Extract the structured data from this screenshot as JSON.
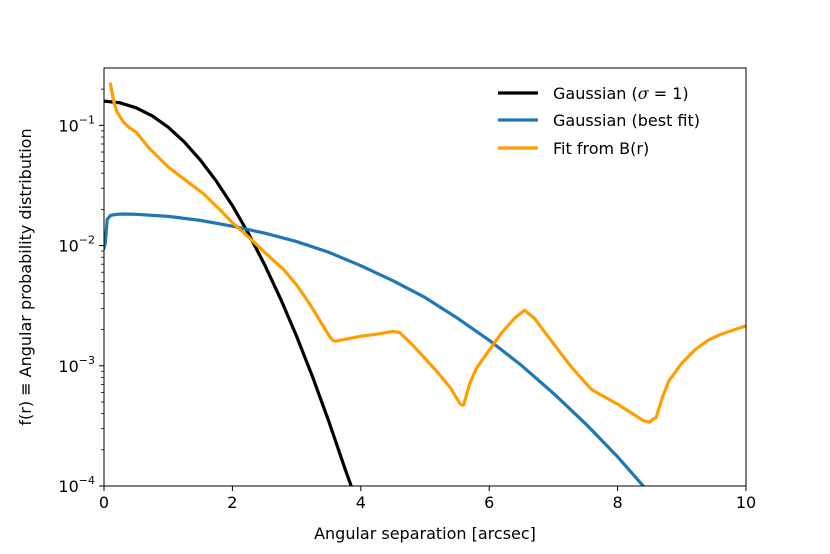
{
  "chart_data": {
    "type": "line",
    "title": "",
    "xlabel": "Angular separation [arcsec]",
    "ylabel": "f(r) ≡ Angular probability distribution",
    "xscale": "linear",
    "yscale": "log",
    "xlim": [
      0,
      10
    ],
    "ylim": [
      0.0001,
      0.3
    ],
    "x_ticks": [
      0,
      2,
      4,
      6,
      8,
      10
    ],
    "x_tick_labels": [
      "0",
      "2",
      "4",
      "6",
      "8",
      "10"
    ],
    "y_ticks": [
      0.0001,
      0.001,
      0.01,
      0.1
    ],
    "y_tick_labels": [
      {
        "base": "10",
        "exp": "−4"
      },
      {
        "base": "10",
        "exp": "−3"
      },
      {
        "base": "10",
        "exp": "−2"
      },
      {
        "base": "10",
        "exp": "−1"
      }
    ],
    "grid": false,
    "legend_position": "top-right",
    "series": [
      {
        "name": "Gaussian (σ = 1)",
        "legend_label": "Gaussian (",
        "legend_sigma": "σ",
        "legend_rest": " = 1)",
        "color": "#000000",
        "x": [
          0,
          0.25,
          0.5,
          0.75,
          1.0,
          1.25,
          1.5,
          1.75,
          2.0,
          2.25,
          2.5,
          2.75,
          3.0,
          3.25,
          3.5,
          3.75,
          3.85
        ],
        "y": [
          0.159,
          0.154,
          0.14,
          0.12,
          0.0965,
          0.0728,
          0.0515,
          0.0343,
          0.0215,
          0.0126,
          0.00696,
          0.00361,
          0.00176,
          0.000806,
          0.000347,
          0.000141,
          0.0001
        ]
      },
      {
        "name": "Gaussian (best fit)",
        "legend_label": "Gaussian (best fit)",
        "color": "#1f77b4",
        "x": [
          0,
          0.02,
          0.05,
          0.1,
          0.2,
          0.3,
          0.5,
          1.0,
          1.5,
          2.0,
          2.5,
          3.0,
          3.5,
          4.0,
          4.5,
          5.0,
          5.5,
          6.0,
          6.5,
          7.0,
          7.5,
          8.0,
          8.4
        ],
        "y": [
          0.0095,
          0.0105,
          0.0165,
          0.0178,
          0.0182,
          0.0183,
          0.0182,
          0.0175,
          0.0162,
          0.0145,
          0.0127,
          0.0108,
          0.0088,
          0.0068,
          0.0051,
          0.0037,
          0.0025,
          0.00163,
          0.00101,
          0.00059,
          0.00033,
          0.000175,
          0.0001
        ]
      },
      {
        "name": "Fit from B(r)",
        "legend_label": "Fit from B(r)",
        "color": "#ff9e00",
        "x": [
          0.1,
          0.15,
          0.2,
          0.3,
          0.4,
          0.5,
          0.7,
          1.0,
          1.3,
          1.55,
          1.8,
          2.0,
          2.2,
          2.5,
          2.8,
          3.0,
          3.2,
          3.4,
          3.5,
          3.55,
          3.6,
          3.8,
          4.0,
          4.3,
          4.5,
          4.6,
          4.8,
          5.0,
          5.2,
          5.4,
          5.5,
          5.55,
          5.6,
          5.7,
          5.8,
          6.0,
          6.2,
          6.4,
          6.55,
          6.7,
          6.9,
          7.1,
          7.3,
          7.5,
          7.6,
          7.8,
          8.0,
          8.2,
          8.4,
          8.5,
          8.55,
          8.6,
          8.7,
          8.8,
          9.0,
          9.2,
          9.4,
          9.6,
          9.8,
          10.0
        ],
        "y": [
          0.22,
          0.16,
          0.13,
          0.107,
          0.095,
          0.088,
          0.065,
          0.045,
          0.034,
          0.027,
          0.02,
          0.0155,
          0.0125,
          0.0088,
          0.0063,
          0.0047,
          0.0033,
          0.0022,
          0.0018,
          0.00165,
          0.0016,
          0.00168,
          0.00176,
          0.00185,
          0.00193,
          0.0019,
          0.0015,
          0.00115,
          0.00088,
          0.00065,
          0.00053,
          0.00048,
          0.00047,
          0.00072,
          0.00095,
          0.00135,
          0.0019,
          0.0025,
          0.0029,
          0.0025,
          0.0018,
          0.0013,
          0.00095,
          0.00072,
          0.00063,
          0.00055,
          0.00048,
          0.00041,
          0.00035,
          0.00034,
          0.00036,
          0.00037,
          0.00055,
          0.00075,
          0.00105,
          0.00135,
          0.00162,
          0.00182,
          0.00198,
          0.00215
        ]
      }
    ]
  }
}
